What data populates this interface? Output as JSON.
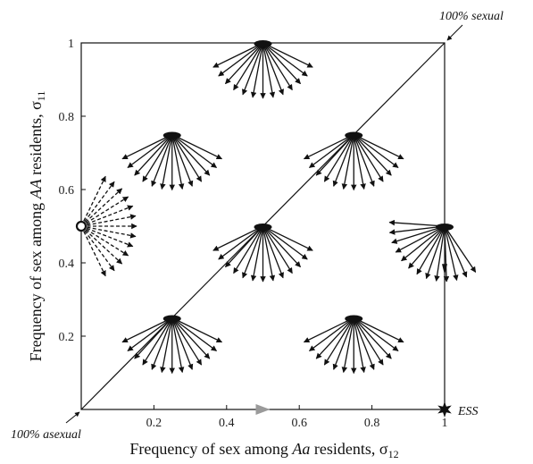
{
  "chart_data": {
    "type": "scatter",
    "xlim": [
      0,
      1
    ],
    "ylim": [
      0,
      1
    ],
    "grid": false,
    "x_ticks": [
      0.2,
      0.4,
      0.6,
      0.8,
      1
    ],
    "y_ticks": [
      0.2,
      0.4,
      0.6,
      0.8,
      1
    ],
    "x_tick_labels": [
      "0.2",
      "0.4",
      "0.6",
      "0.8",
      "1"
    ],
    "y_tick_labels": [
      "0.2",
      "0.4",
      "0.6",
      "0.8",
      "1"
    ],
    "xlabel": {
      "pre": "Frequency of sex among ",
      "italic": "Aa",
      "mid": " residents, σ",
      "sub": "12"
    },
    "ylabel": {
      "pre": "Frequency of sex among ",
      "italic": "AA",
      "mid": " residents, σ",
      "sub": "11"
    },
    "diagonal": {
      "from": [
        0,
        0
      ],
      "to": [
        1,
        1
      ]
    },
    "resident_points": [
      {
        "x": 0.5,
        "y": 1.0,
        "style": "solid",
        "direction": "down"
      },
      {
        "x": 0.25,
        "y": 0.75,
        "style": "solid",
        "direction": "down"
      },
      {
        "x": 0.75,
        "y": 0.75,
        "style": "solid",
        "direction": "down"
      },
      {
        "x": 0.0,
        "y": 0.5,
        "style": "dashed",
        "direction": "right"
      },
      {
        "x": 0.5,
        "y": 0.5,
        "style": "solid",
        "direction": "down"
      },
      {
        "x": 1.0,
        "y": 0.5,
        "style": "solid",
        "direction": "down-left"
      },
      {
        "x": 0.25,
        "y": 0.25,
        "style": "solid",
        "direction": "down"
      },
      {
        "x": 0.75,
        "y": 0.25,
        "style": "solid",
        "direction": "down"
      }
    ],
    "edge_arrows": [
      {
        "x": 0.5,
        "y": 0.0,
        "color": "#9a9a9a",
        "direction": "right"
      },
      {
        "x": 1.0,
        "y": 0.38,
        "color": "#111111",
        "direction": "down"
      }
    ],
    "annotations": [
      {
        "text": "100% sexual",
        "x": 1,
        "y": 1,
        "position": "top-right"
      },
      {
        "text": "100% asexual",
        "x": 0,
        "y": 0,
        "position": "bottom-left"
      },
      {
        "text": "ESS",
        "x": 1,
        "y": 0,
        "position": "right",
        "marker": "star"
      }
    ]
  }
}
